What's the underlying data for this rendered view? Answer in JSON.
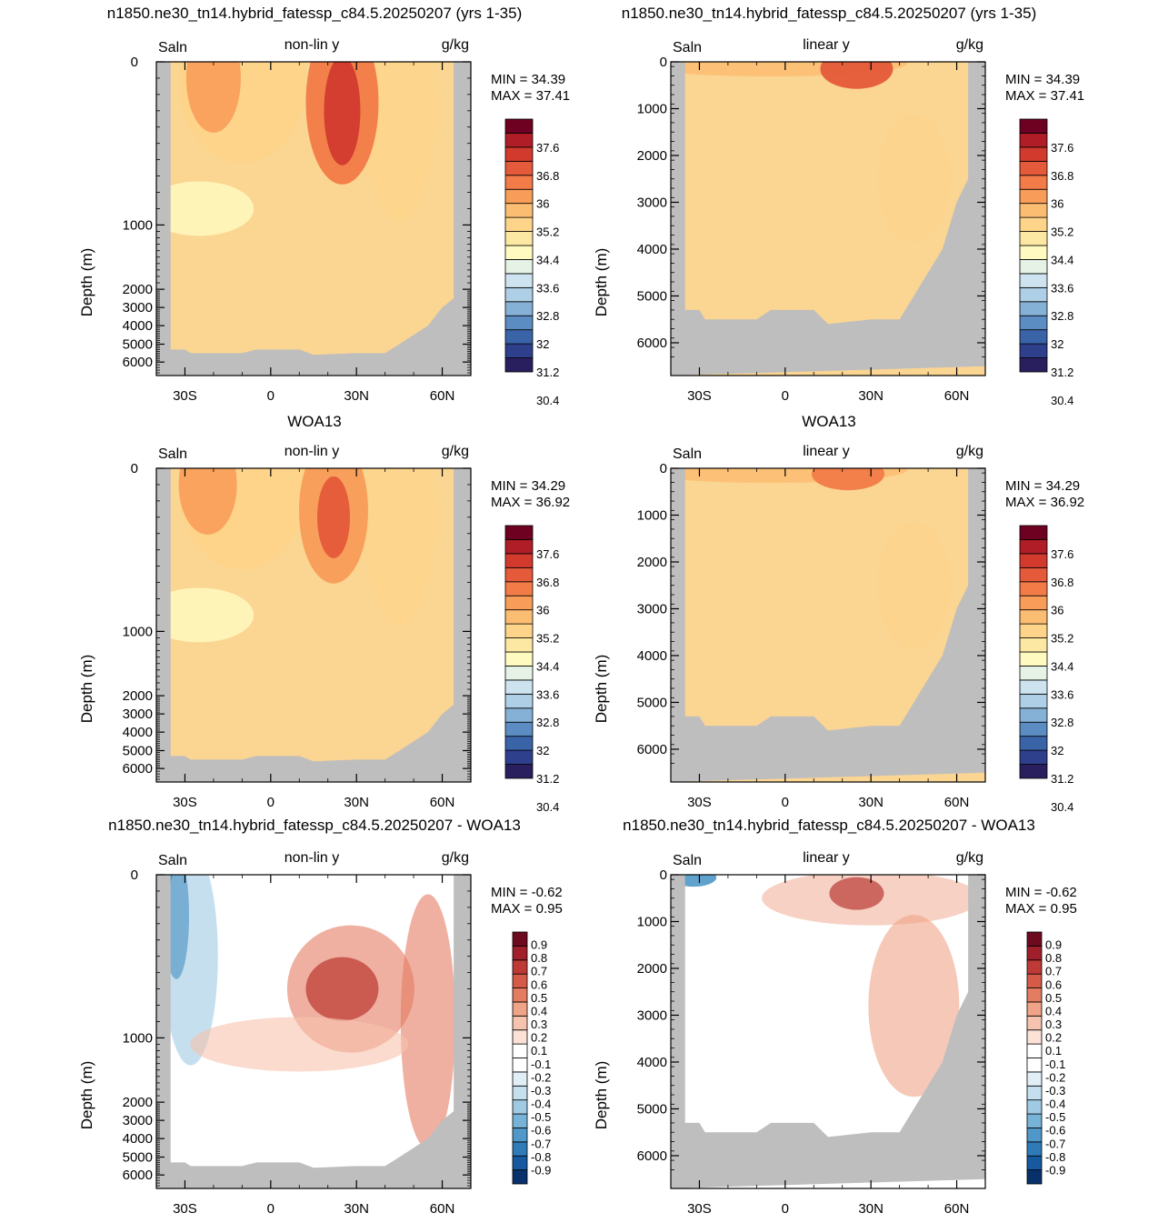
{
  "figure": {
    "row_titles": [
      "n1850.ne30_tn14.hybrid_fatessp_c84.5.20250207 (yrs 1-35)",
      "n1850.ne30_tn14.hybrid_fatessp_c84.5.20250207 (yrs 1-35)",
      "WOA13",
      "WOA13",
      "n1850.ne30_tn14.hybrid_fatessp_c84.5.20250207 - WOA13",
      "n1850.ne30_tn14.hybrid_fatessp_c84.5.20250207 - WOA13"
    ],
    "colors": {
      "land": "#bebebe",
      "salinity_palette": [
        "#2a1f5e",
        "#2e3f8c",
        "#3a63a8",
        "#5b8cc2",
        "#86b1d6",
        "#aecfe6",
        "#cde3f0",
        "#e6f2e6",
        "#fffbc0",
        "#fde8a3",
        "#fdd48a",
        "#fbbd72",
        "#f89d59",
        "#f27b48",
        "#e55a3a",
        "#d23a2e",
        "#b01d27",
        "#6e0022"
      ],
      "anomaly_palette": [
        "#08306b",
        "#1659a0",
        "#2f7bb7",
        "#4f98c9",
        "#76b3d7",
        "#a0cae3",
        "#c5dfee",
        "#e2eef6",
        "#ffffff",
        "#ffffff",
        "#fbe1d6",
        "#f6c3ae",
        "#efa387",
        "#e47c62",
        "#d55a48",
        "#bf3a37",
        "#a11f2b",
        "#6e0a1e"
      ],
      "mean_fill": "#fbd592"
    }
  },
  "chart_data": [
    {
      "type": "heatmap",
      "panel": "model-nonlinear",
      "variable": "Saln",
      "mode": "non-lin y",
      "units": "g/kg",
      "ylabel": "Depth (m)",
      "x_ticks": [
        "30S",
        "0",
        "30N",
        "60N"
      ],
      "y_ticks": [
        "0",
        "1000",
        "2000",
        "3000",
        "4000",
        "5000",
        "6000"
      ],
      "xlim": [
        -40,
        70
      ],
      "ylim": [
        0,
        6500
      ],
      "min_label": "MIN =  34.39",
      "max_label": "MAX =  37.41",
      "colorbar_labels": [
        "37.6",
        "36.8",
        "36",
        "35.2",
        "34.4",
        "33.6",
        "32.8",
        "32",
        "31.2",
        "30.4"
      ]
    },
    {
      "type": "heatmap",
      "panel": "model-linear",
      "variable": "Saln",
      "mode": "linear y",
      "units": "g/kg",
      "ylabel": "Depth (m)",
      "x_ticks": [
        "30S",
        "0",
        "30N",
        "60N"
      ],
      "y_ticks": [
        "0",
        "1000",
        "2000",
        "3000",
        "4000",
        "5000",
        "6000"
      ],
      "xlim": [
        -40,
        70
      ],
      "ylim": [
        0,
        6500
      ],
      "min_label": "MIN =  34.39",
      "max_label": "MAX =  37.41",
      "colorbar_labels": [
        "37.6",
        "36.8",
        "36",
        "35.2",
        "34.4",
        "33.6",
        "32.8",
        "32",
        "31.2",
        "30.4"
      ]
    },
    {
      "type": "heatmap",
      "panel": "obs-nonlinear",
      "variable": "Saln",
      "mode": "non-lin y",
      "units": "g/kg",
      "ylabel": "Depth (m)",
      "x_ticks": [
        "30S",
        "0",
        "30N",
        "60N"
      ],
      "y_ticks": [
        "0",
        "1000",
        "2000",
        "3000",
        "4000",
        "5000",
        "6000"
      ],
      "xlim": [
        -40,
        70
      ],
      "ylim": [
        0,
        6500
      ],
      "min_label": "MIN =  34.29",
      "max_label": "MAX =  36.92",
      "colorbar_labels": [
        "37.6",
        "36.8",
        "36",
        "35.2",
        "34.4",
        "33.6",
        "32.8",
        "32",
        "31.2",
        "30.4"
      ]
    },
    {
      "type": "heatmap",
      "panel": "obs-linear",
      "variable": "Saln",
      "mode": "linear y",
      "units": "g/kg",
      "ylabel": "Depth (m)",
      "x_ticks": [
        "30S",
        "0",
        "30N",
        "60N"
      ],
      "y_ticks": [
        "0",
        "1000",
        "2000",
        "3000",
        "4000",
        "5000",
        "6000"
      ],
      "xlim": [
        -40,
        70
      ],
      "ylim": [
        0,
        6500
      ],
      "min_label": "MIN =  34.29",
      "max_label": "MAX =  36.92",
      "colorbar_labels": [
        "37.6",
        "36.8",
        "36",
        "35.2",
        "34.4",
        "33.6",
        "32.8",
        "32",
        "31.2",
        "30.4"
      ]
    },
    {
      "type": "heatmap",
      "panel": "diff-nonlinear",
      "variable": "Saln",
      "mode": "non-lin y",
      "units": "g/kg",
      "ylabel": "Depth (m)",
      "x_ticks": [
        "30S",
        "0",
        "30N",
        "60N"
      ],
      "y_ticks": [
        "0",
        "1000",
        "2000",
        "3000",
        "4000",
        "5000",
        "6000"
      ],
      "xlim": [
        -40,
        70
      ],
      "ylim": [
        0,
        6500
      ],
      "min_label": "MIN = -0.62",
      "max_label": "MAX =   0.95",
      "colorbar_labels": [
        "0.9",
        "0.8",
        "0.7",
        "0.6",
        "0.5",
        "0.4",
        "0.3",
        "0.2",
        "0.1",
        "-0.1",
        "-0.2",
        "-0.3",
        "-0.4",
        "-0.5",
        "-0.6",
        "-0.7",
        "-0.8",
        "-0.9"
      ]
    },
    {
      "type": "heatmap",
      "panel": "diff-linear",
      "variable": "Saln",
      "mode": "linear y",
      "units": "g/kg",
      "ylabel": "Depth (m)",
      "x_ticks": [
        "30S",
        "0",
        "30N",
        "60N"
      ],
      "y_ticks": [
        "0",
        "1000",
        "2000",
        "3000",
        "4000",
        "5000",
        "6000"
      ],
      "xlim": [
        -40,
        70
      ],
      "ylim": [
        0,
        6500
      ],
      "min_label": "MIN = -0.62",
      "max_label": "MAX =   0.95",
      "colorbar_labels": [
        "0.9",
        "0.8",
        "0.7",
        "0.6",
        "0.5",
        "0.4",
        "0.3",
        "0.2",
        "0.1",
        "-0.1",
        "-0.2",
        "-0.3",
        "-0.4",
        "-0.5",
        "-0.6",
        "-0.7",
        "-0.8",
        "-0.9"
      ]
    }
  ]
}
